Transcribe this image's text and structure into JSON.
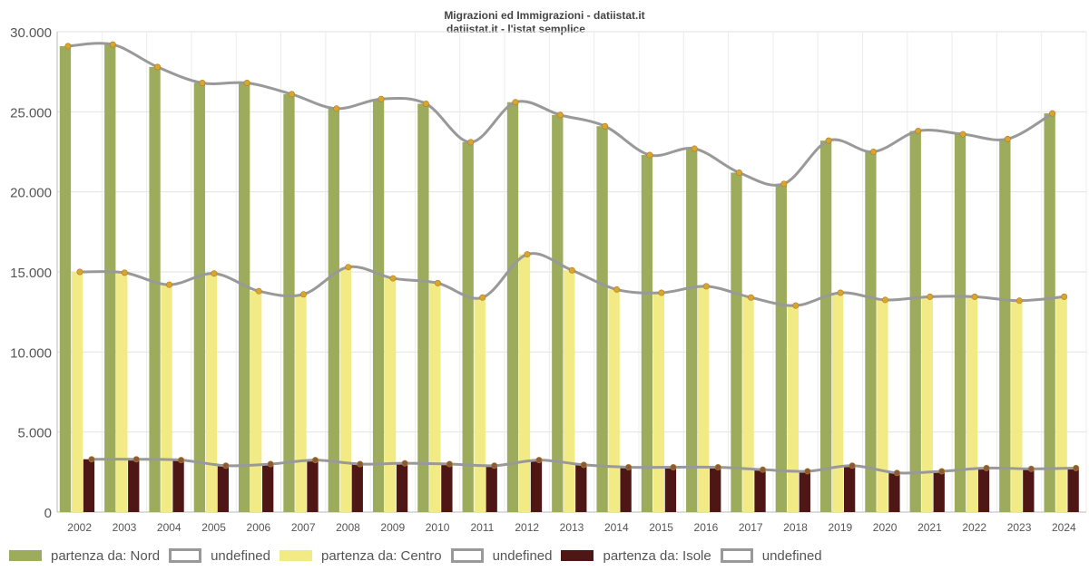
{
  "chart_data": {
    "type": "bar",
    "title": "Migrazioni ed Immigrazioni - datiistat.it",
    "subtitle": "datiistat.it - l'istat semplice",
    "categories": [
      "2002",
      "2003",
      "2004",
      "2005",
      "2006",
      "2007",
      "2008",
      "2009",
      "2010",
      "2011",
      "2012",
      "2013",
      "2014",
      "2015",
      "2016",
      "2017",
      "2018",
      "2019",
      "2020",
      "2021",
      "2022",
      "2023",
      "2024"
    ],
    "ylim": [
      0,
      30000
    ],
    "yticks": [
      0,
      5000,
      10000,
      15000,
      20000,
      25000,
      30000
    ],
    "ytick_labels": [
      "0",
      "5.000",
      "10.000",
      "15.000",
      "20.000",
      "25.000",
      "30.000"
    ],
    "grid": true,
    "legend_position": "bottom-left",
    "series": [
      {
        "name": "partenza da: Nord",
        "color": "#9cab5c",
        "values": [
          29100,
          29200,
          27800,
          26800,
          26800,
          26100,
          25200,
          25800,
          25500,
          23100,
          25600,
          24800,
          24100,
          22300,
          22700,
          21200,
          20500,
          23200,
          22500,
          23800,
          23600,
          23300,
          24900
        ]
      },
      {
        "name": "partenza da: Centro",
        "color": "#f2ea84",
        "values": [
          15000,
          14950,
          14200,
          14900,
          13800,
          13600,
          15300,
          14600,
          14300,
          13400,
          16100,
          15100,
          13900,
          13700,
          14100,
          13400,
          12900,
          13700,
          13250,
          13450,
          13450,
          13200,
          13450
        ]
      },
      {
        "name": "partenza da: Isole",
        "color": "#4f1616",
        "values": [
          3300,
          3300,
          3250,
          2900,
          3000,
          3250,
          3000,
          3050,
          3000,
          2900,
          3250,
          2950,
          2800,
          2800,
          2800,
          2650,
          2550,
          2900,
          2450,
          2550,
          2750,
          2700,
          2750
        ]
      }
    ],
    "trend_lines": [
      {
        "name": "undefined",
        "color": "#999999",
        "marker_color": "#d9a430",
        "follows": "partenza da: Nord"
      },
      {
        "name": "undefined",
        "color": "#999999",
        "marker_color": "#d9a430",
        "follows": "partenza da: Centro"
      },
      {
        "name": "undefined",
        "color": "#999999",
        "marker_color": "#8a5a3a",
        "follows": "partenza da: Isole"
      }
    ]
  }
}
